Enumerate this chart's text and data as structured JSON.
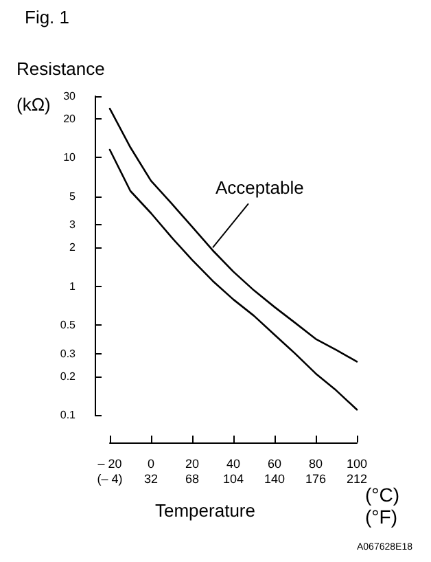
{
  "chart_data": {
    "type": "line",
    "title": "Fig. 1",
    "ylabel": "Resistance\n(kΩ)",
    "xlabel": "Temperature",
    "log": "y",
    "ylim": [
      0.1,
      30
    ],
    "yticks": [
      0.1,
      0.2,
      0.3,
      0.5,
      1,
      2,
      3,
      5,
      10,
      20,
      30
    ],
    "xlim": [
      -20,
      100
    ],
    "xticks": [
      {
        "value": -20,
        "label": "– 20"
      },
      0,
      20,
      40,
      60,
      80,
      100
    ],
    "x2lim": [
      -4,
      212
    ],
    "x2ticks": [
      {
        "value": -4,
        "label": "(– 4)"
      },
      32,
      68,
      104,
      140,
      176,
      212
    ],
    "x": [
      -20,
      -10,
      0,
      10,
      20,
      30,
      40,
      50,
      60,
      70,
      80,
      90,
      100
    ],
    "series": [
      {
        "color": "#000000",
        "values": [
          24,
          12,
          6.6,
          4.4,
          2.9,
          1.9,
          1.3,
          0.93,
          0.69,
          0.52,
          0.39,
          0.32,
          0.26
        ]
      },
      {
        "color": "#000000",
        "values": [
          11.5,
          5.5,
          3.7,
          2.4,
          1.6,
          1.1,
          0.79,
          0.59,
          0.42,
          0.3,
          0.21,
          0.155,
          0.11
        ]
      }
    ],
    "annotations": [
      {
        "text": "Acceptable",
        "x": 30,
        "y": 1.9
      },
      "(°C)\n(°F)",
      "A067628E18"
    ],
    "grid": false,
    "marker": "none",
    "line_style": "solid"
  }
}
